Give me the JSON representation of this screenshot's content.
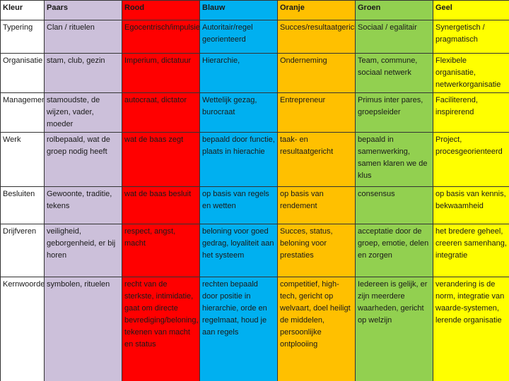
{
  "header": {
    "label": "Kleur",
    "columns": [
      "Paars",
      "Rood",
      "Blauw",
      "Oranje",
      "Groen",
      "Geel"
    ]
  },
  "rows": [
    {
      "label": "Typering",
      "cells": [
        "Clan / rituelen",
        "Egocentrisch/impulsief",
        "Autoritair/regel georienteerd",
        "Succes/resultaatgericht",
        "Sociaal / egalitair",
        "Synergetisch / pragmatisch"
      ]
    },
    {
      "label": "Organisatie",
      "cells": [
        "stam, club, gezin",
        "Imperium, dictatuur",
        "Hierarchie,",
        "Onderneming",
        "Team, commune, sociaal netwerk",
        "Flexibele organisatie, netwerkorganisatie"
      ]
    },
    {
      "label": "Management",
      "cells": [
        "stamoudste, de wijzen, vader, moeder",
        "autocraat, dictator",
        "Wettelijk gezag, burocraat",
        "Entrepreneur",
        "Primus inter pares, groepsleider",
        "Faciliterend, inspirerend"
      ]
    },
    {
      "label": "Werk",
      "cells": [
        "rolbepaald, wat de groep nodig heeft",
        "wat de baas zegt",
        "bepaald door functie, plaats in hierachie",
        "taak- en resultaatgericht",
        "bepaald in samenwerking, samen klaren we de klus",
        "Project, procesgeorienteerd"
      ]
    },
    {
      "label": "Besluiten",
      "cells": [
        "Gewoonte, traditie, tekens",
        "wat de baas besluit",
        "op basis van regels en wetten",
        "op basis van rendement",
        "consensus",
        "op basis van kennis, bekwaamheid"
      ]
    },
    {
      "label": "Drijfveren",
      "cells": [
        "veiligheid, geborgenheid, er bij horen",
        "respect, angst, macht",
        "beloning voor goed gedrag, loyaliteit aan het systeem",
        "Succes, status, beloning voor prestaties",
        "acceptatie door de groep, emotie, delen en zorgen",
        "het bredere geheel, creeren samenhang, integratie"
      ]
    },
    {
      "label": "Kernwoorden",
      "cells": [
        "symbolen, rituelen",
        "recht van de sterkste, intimidatie, gaat om directe bevrediging/beloning, tekenen van macht en status",
        "rechten bepaald door positie in hierarchie, orde en regelmaat, houd je aan regels",
        "competitief, high-tech, gericht op welvaart, doel heiligt de middelen, persoonlijke ontplooiing",
        "Iedereen is gelijk, er zijn meerdere waarheden, gericht op welzijn",
        "verandering is de norm, integratie van waarde-systemen, lerende organisatie"
      ]
    }
  ]
}
